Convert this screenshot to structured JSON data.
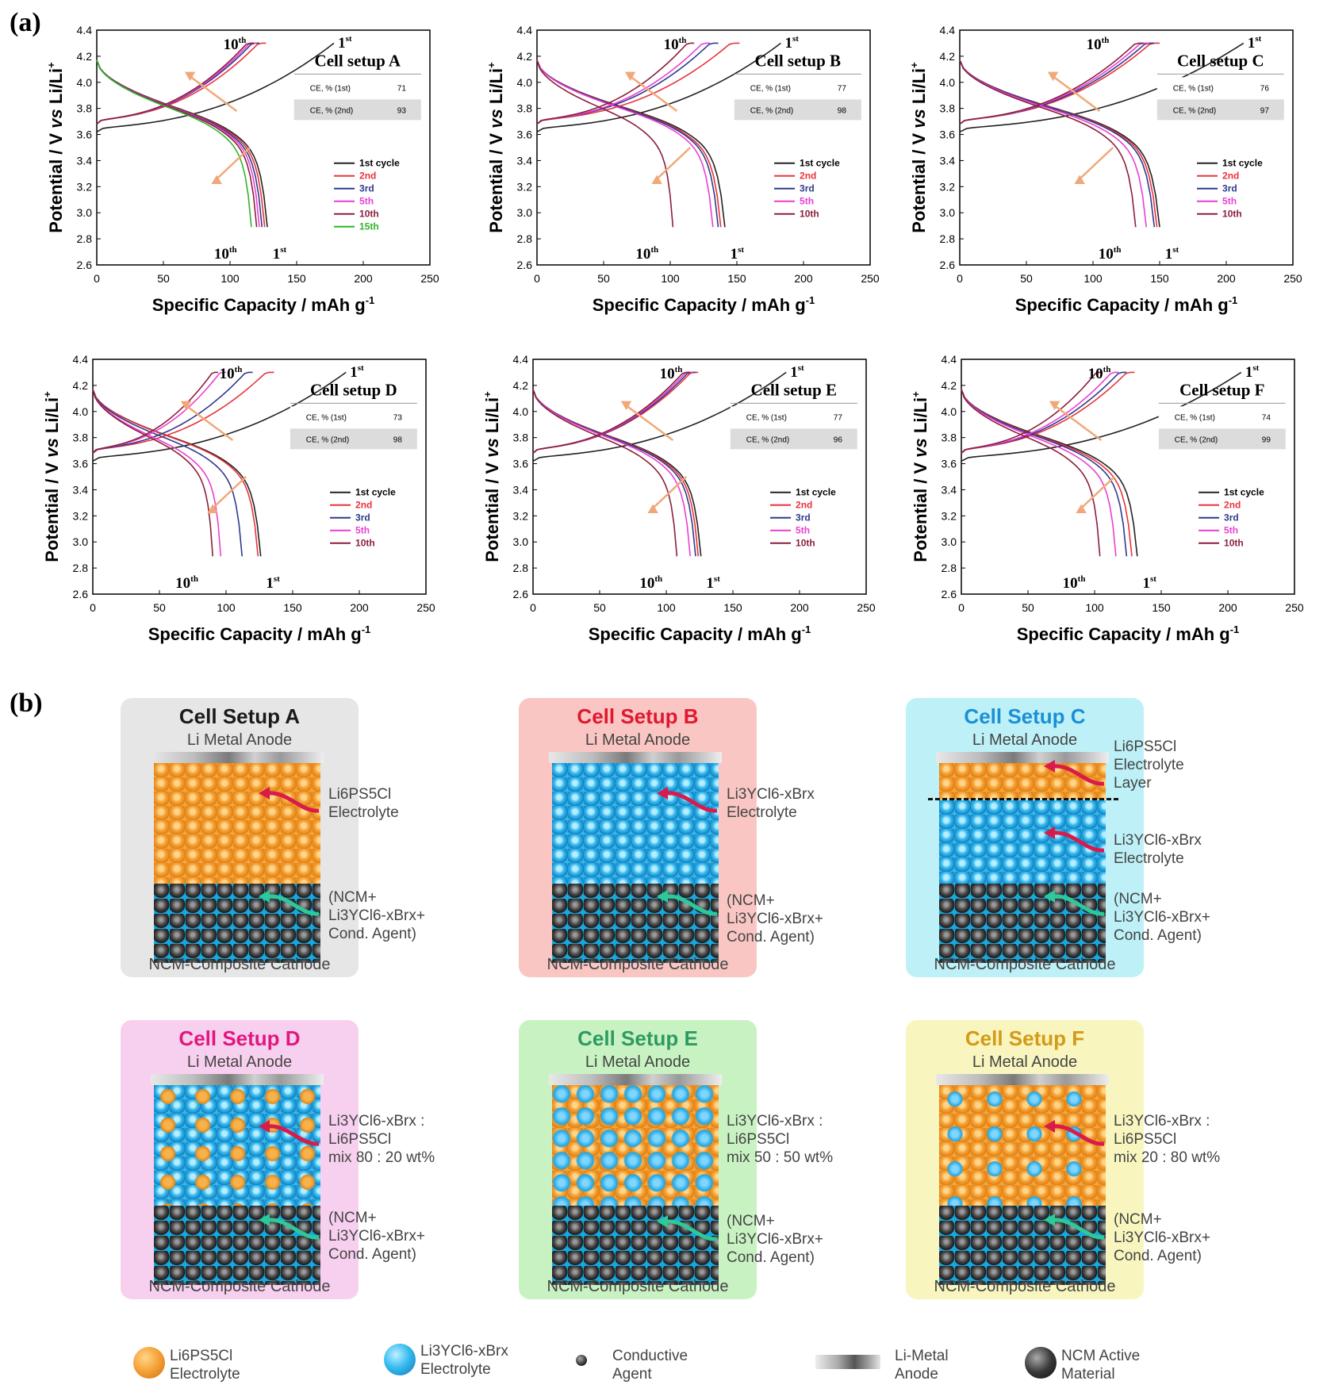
{
  "panels": {
    "a": "(a)",
    "b": "(b)"
  },
  "axes": {
    "xlabel": "Specific Capacity / mAh g",
    "xlabel_sup": "-1",
    "ylabel_pre": "Potential / V ",
    "ylabel_vs": "vs",
    "ylabel_post": " Li/Li",
    "ylabel_sup": "+",
    "xticks": [
      "0",
      "50",
      "100",
      "150",
      "200",
      "250"
    ],
    "yticks": [
      "2.6",
      "2.8",
      "3.0",
      "3.2",
      "3.4",
      "3.6",
      "3.8",
      "4.0",
      "4.2",
      "4.4"
    ]
  },
  "colors": {
    "1st": "#222222",
    "2nd": "#e8333b",
    "3rd": "#2e3a8c",
    "5th": "#ea3fd0",
    "10th": "#8a1f3c",
    "15th": "#2fb52a",
    "arrow": "#f0a87a"
  },
  "chart_data": [
    {
      "type": "line",
      "title": "Cell setup A",
      "xlabel": "Specific Capacity / mAh g-1",
      "ylabel": "Potential / V vs Li/Li+",
      "xlim": [
        0,
        250
      ],
      "ylim": [
        2.6,
        4.4
      ],
      "ce_rows": [
        {
          "label": "CE, % (1st)",
          "value": "71"
        },
        {
          "label": "CE, % (2nd)",
          "value": "93"
        }
      ],
      "legend": [
        "1st cycle",
        "2nd",
        "3rd",
        "5th",
        "10th",
        "15th"
      ],
      "charge_end": [
        178,
        127,
        122,
        120,
        118,
        null
      ],
      "discharge_end": [
        128,
        126,
        124,
        122,
        120,
        116
      ],
      "marks": {
        "top_10": "10",
        "top_1": "1",
        "bot_10": "10",
        "bot_1": "1"
      }
    },
    {
      "type": "line",
      "title": "Cell setup B",
      "xlabel": "Specific Capacity / mAh g-1",
      "ylabel": "Potential / V vs Li/Li+",
      "xlim": [
        0,
        250
      ],
      "ylim": [
        2.6,
        4.4
      ],
      "ce_rows": [
        {
          "label": "CE, % (1st)",
          "value": "77"
        },
        {
          "label": "CE, % (2nd)",
          "value": "98"
        }
      ],
      "legend": [
        "1st cycle",
        "2nd",
        "3rd",
        "5th",
        "10th"
      ],
      "charge_end": [
        183,
        152,
        136,
        130,
        118
      ],
      "discharge_end": [
        141,
        138,
        136,
        132,
        102
      ],
      "marks": {
        "top_10": "10",
        "top_1": "1",
        "bot_10": "10",
        "bot_1": "1"
      }
    },
    {
      "type": "line",
      "title": "Cell setup C",
      "xlabel": "Specific Capacity / mAh g-1",
      "ylabel": "Potential / V vs Li/Li+",
      "xlim": [
        0,
        250
      ],
      "ylim": [
        2.6,
        4.4
      ],
      "ce_rows": [
        {
          "label": "CE, % (1st)",
          "value": "76"
        },
        {
          "label": "CE, % (2nd)",
          "value": "97"
        }
      ],
      "legend": [
        "1st cycle",
        "2nd",
        "3rd",
        "5th",
        "10th"
      ],
      "charge_end": [
        213,
        150,
        146,
        142,
        138
      ],
      "discharge_end": [
        150,
        148,
        146,
        140,
        132
      ],
      "marks": {
        "top_10": "10",
        "top_1": "1",
        "bot_10": "10",
        "bot_1": "1"
      }
    },
    {
      "type": "line",
      "title": "Cell setup D",
      "xlabel": "Specific Capacity / mAh g-1",
      "ylabel": "Potential / V vs Li/Li+",
      "xlim": [
        0,
        250
      ],
      "ylim": [
        2.6,
        4.4
      ],
      "ce_rows": [
        {
          "label": "CE, % (1st)",
          "value": "73"
        },
        {
          "label": "CE, % (2nd)",
          "value": "98"
        }
      ],
      "legend": [
        "1st cycle",
        "2nd",
        "3rd",
        "5th",
        "10th"
      ],
      "charge_end": [
        190,
        136,
        120,
        100,
        94
      ],
      "discharge_end": [
        126,
        124,
        112,
        96,
        90
      ],
      "marks": {
        "top_10": "10",
        "top_1": "1",
        "bot_10": "10",
        "bot_1": "1"
      }
    },
    {
      "type": "line",
      "title": "Cell setup E",
      "xlabel": "Specific Capacity / mAh g-1",
      "ylabel": "Potential / V vs Li/Li+",
      "xlim": [
        0,
        250
      ],
      "ylim": [
        2.6,
        4.4
      ],
      "ce_rows": [
        {
          "label": "CE, % (1st)",
          "value": "77"
        },
        {
          "label": "CE, % (2nd)",
          "value": "96"
        }
      ],
      "legend": [
        "1st cycle",
        "2nd",
        "3rd",
        "5th",
        "10th"
      ],
      "charge_end": [
        190,
        124,
        122,
        120,
        118
      ],
      "discharge_end": [
        126,
        124,
        122,
        118,
        108
      ],
      "marks": {
        "top_10": "10",
        "top_1": "1",
        "bot_10": "10",
        "bot_1": "1"
      }
    },
    {
      "type": "line",
      "title": "Cell setup F",
      "xlabel": "Specific Capacity / mAh g-1",
      "ylabel": "Potential / V vs Li/Li+",
      "xlim": [
        0,
        250
      ],
      "ylim": [
        2.6,
        4.4
      ],
      "ce_rows": [
        {
          "label": "CE, % (1st)",
          "value": "74"
        },
        {
          "label": "CE, % (2nd)",
          "value": "99"
        }
      ],
      "legend": [
        "1st cycle",
        "2nd",
        "3rd",
        "5th",
        "10th"
      ],
      "charge_end": [
        210,
        130,
        124,
        118,
        106
      ],
      "discharge_end": [
        132,
        128,
        124,
        116,
        104
      ],
      "marks": {
        "top_10": "10",
        "top_1": "1",
        "bot_10": "10",
        "bot_1": "1"
      }
    }
  ],
  "setups": [
    {
      "title": "Cell Setup A",
      "title_color": "#1a1a1a",
      "bg": "#e6e6e6",
      "anode": "Li Metal Anode",
      "cathode": "NCM-Composite Cathode"
    },
    {
      "title": "Cell Setup B",
      "title_color": "#e0182e",
      "bg": "#f9c6c3",
      "anode": "Li Metal Anode",
      "cathode": "NCM-Composite Cathode"
    },
    {
      "title": "Cell Setup C",
      "title_color": "#1b8fd6",
      "bg": "#bdf1f7",
      "anode": "Li Metal Anode",
      "cathode": "NCM-Composite Cathode"
    },
    {
      "title": "Cell Setup D",
      "title_color": "#e0177f",
      "bg": "#f8d0ef",
      "anode": "Li Metal Anode",
      "cathode": "NCM-Composite Cathode"
    },
    {
      "title": "Cell Setup E",
      "title_color": "#2e9a62",
      "bg": "#c9f2c3",
      "anode": "Li Metal Anode",
      "cathode": "NCM-Composite Cathode"
    },
    {
      "title": "Cell Setup F",
      "title_color": "#d49a18",
      "bg": "#f8f6be",
      "anode": "Li Metal Anode",
      "cathode": "NCM-Composite Cathode"
    }
  ],
  "notes": {
    "lps": "Li6PS5Cl",
    "electrolyte": "Electrolyte",
    "layer": "Layer",
    "lycb": "Li3YCl6-xBrx",
    "ncm1": "(NCM+",
    "ncm2": "Li3YCl6-xBrx+",
    "ncm3": "Cond. Agent)",
    "mix_d1": "Li3YCl6-xBrx :",
    "mix_d3": "mix 80 : 20 wt%",
    "mix_e3": "mix 50 : 50 wt%",
    "mix_f3": "mix 20 : 80 wt%"
  },
  "legend_b": [
    {
      "l1": "Li6PS5Cl",
      "l2": "Electrolyte"
    },
    {
      "l1": "Li3YCl6-xBrx",
      "l2": "Electrolyte"
    },
    {
      "l1": "Conductive",
      "l2": "Agent"
    },
    {
      "l1": "Li-Metal",
      "l2": "Anode"
    },
    {
      "l1": "NCM Active",
      "l2": "Material"
    }
  ]
}
